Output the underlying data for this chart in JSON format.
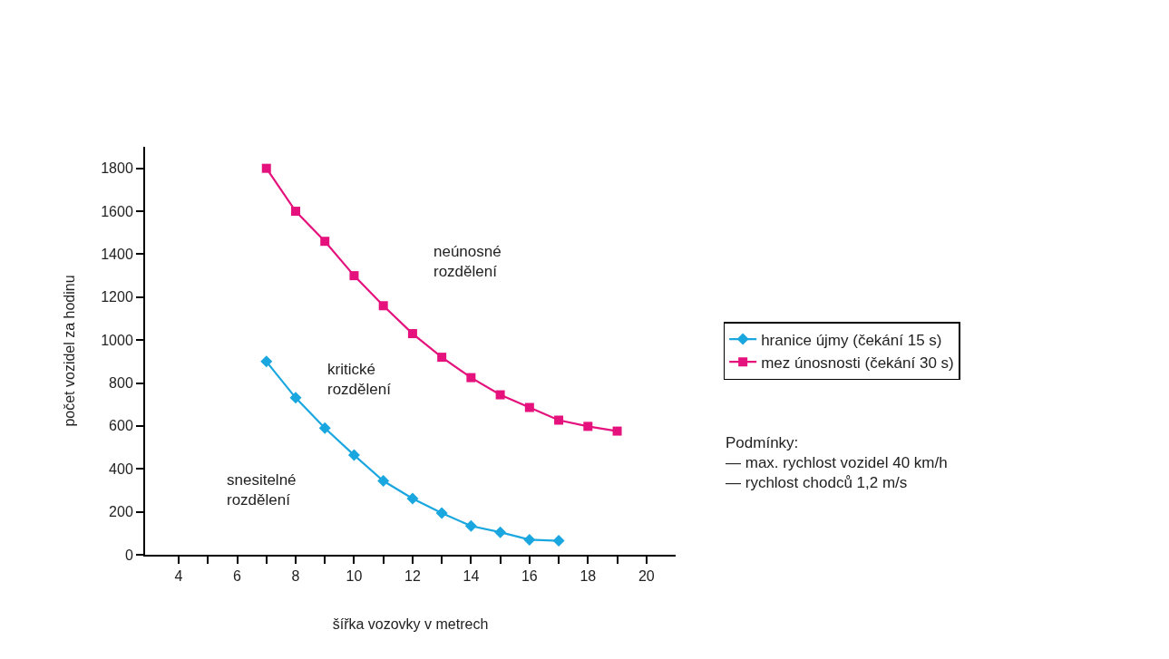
{
  "chart_data": {
    "type": "line",
    "xlabel": "šířka vozovky v metrech",
    "ylabel": "počet vozidel za hodinu",
    "x": [
      7,
      8,
      9,
      10,
      11,
      12,
      13,
      14,
      15,
      16,
      17,
      18,
      19
    ],
    "series": [
      {
        "name": "hranice újmy (čekání 15 s)",
        "color": "#1aa7e0",
        "marker": "diamond",
        "values": [
          900,
          731,
          590,
          464,
          344,
          262,
          194,
          134,
          105,
          70,
          65,
          null,
          null
        ]
      },
      {
        "name": "mez únosnosti (čekání 30 s)",
        "color": "#e5127d",
        "marker": "square",
        "values": [
          1800,
          1600,
          1460,
          1300,
          1160,
          1030,
          920,
          825,
          745,
          686,
          627,
          598,
          576
        ]
      }
    ],
    "xlim": [
      2.85,
      21
    ],
    "ylim": [
      0,
      1900
    ],
    "xticks": [
      4,
      {
        "value": 5,
        "label": null
      },
      6,
      {
        "value": 7,
        "label": null
      },
      8,
      {
        "value": 9,
        "label": null
      },
      10,
      {
        "value": 11,
        "label": null
      },
      12,
      {
        "value": 13,
        "label": null
      },
      14,
      {
        "value": 15,
        "label": null
      },
      16,
      {
        "value": 17,
        "label": null
      },
      18,
      {
        "value": 19,
        "label": null
      },
      20
    ],
    "yticks": [
      0,
      200,
      400,
      600,
      800,
      1000,
      1200,
      1400,
      1600,
      1800
    ],
    "legend": "right",
    "line_style": "solid",
    "annotations": [
      "neúnosné\nrozdělení",
      "kritické\nrozdělení",
      "snesitelné\nrozdělení",
      "Podmínky:\n— max. rychlost vozidel 40 km/h\n— rychlost chodců 1,2 m/s"
    ]
  }
}
